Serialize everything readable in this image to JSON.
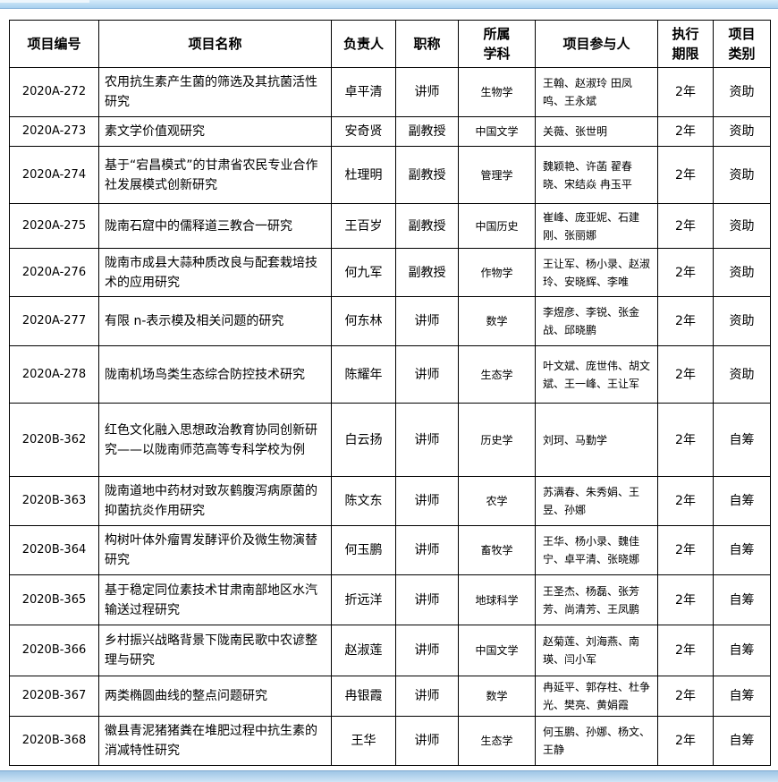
{
  "colors": {
    "top_bar": "#a9d0ef",
    "bottom_bar": "#9fc6e6"
  },
  "headers": [
    "项目编号",
    "项目名称",
    "负责人",
    "职称",
    "所属学科",
    "项目参与人",
    "执行期限",
    "项目类别"
  ],
  "rows": [
    {
      "id": "2020A-272",
      "name": "农用抗生素产生菌的筛选及其抗菌活性研究",
      "leader": "卓平清",
      "title": "讲师",
      "subject": "生物学",
      "participants": "王翰、赵淑玲 田凤鸣、王永斌",
      "period": "2年",
      "type": "资助"
    },
    {
      "id": "2020A-273",
      "name": "素文学价值观研究",
      "leader": "安奇贤",
      "title": "副教授",
      "subject": "中国文学",
      "participants": "关薇、张世明",
      "period": "2年",
      "type": "资助"
    },
    {
      "id": "2020A-274",
      "name": "基于“宕昌模式”的甘肃省农民专业合作社发展模式创新研究",
      "leader": "杜理明",
      "title": "副教授",
      "subject": "管理学",
      "participants": "魏颖艳、许菡 翟春晓、宋结焱 冉玉平",
      "period": "2年",
      "type": "资助"
    },
    {
      "id": "2020A-275",
      "name": "陇南石窟中的儒释道三教合一研究",
      "leader": "王百岁",
      "title": "副教授",
      "subject": "中国历史",
      "participants": "崔峰、庞亚妮、石建刚、张丽娜",
      "period": "2年",
      "type": "资助"
    },
    {
      "id": "2020A-276",
      "name": "陇南市成县大蒜种质改良与配套栽培技术的应用研究",
      "leader": "何九军",
      "title": "副教授",
      "subject": "作物学",
      "participants": "王让军、杨小录、赵淑玲、安晓辉、李唯",
      "period": "2年",
      "type": "资助"
    },
    {
      "id": "2020A-277",
      "name": "有限 n-表示模及相关问题的研究",
      "leader": "何东林",
      "title": "讲师",
      "subject": "数学",
      "participants": "李煜彦、李锐、张金战、邱晓鹏",
      "period": "2年",
      "type": "资助"
    },
    {
      "id": "2020A-278",
      "name": "陇南机场鸟类生态综合防控技术研究",
      "leader": "陈耀年",
      "title": "讲师",
      "subject": "生态学",
      "participants": "叶文斌、庞世伟、胡文斌、王一峰、王让军",
      "period": "2年",
      "type": "资助"
    },
    {
      "id": "2020B-362",
      "name": "红色文化融入思想政治教育协同创新研究——以陇南师范高等专科学校为例",
      "leader": "白云扬",
      "title": "讲师",
      "subject": "历史学",
      "participants": "刘珂、马勤学",
      "period": "2年",
      "type": "自筹"
    },
    {
      "id": "2020B-363",
      "name": "陇南道地中药材对致灰鹤腹泻病原菌的抑菌抗炎作用研究",
      "leader": "陈文东",
      "title": "讲师",
      "subject": "农学",
      "participants": "苏满春、朱秀娟、王昱、孙娜",
      "period": "2年",
      "type": "自筹"
    },
    {
      "id": "2020B-364",
      "name": "构树叶体外瘤胃发酵评价及微生物演替研究",
      "leader": "何玉鹏",
      "title": "讲师",
      "subject": "畜牧学",
      "participants": "王华、杨小录、魏佳宁、卓平清、张晓娜",
      "period": "2年",
      "type": "自筹"
    },
    {
      "id": "2020B-365",
      "name": "基于稳定同位素技术甘肃南部地区水汽输送过程研究",
      "leader": "折远洋",
      "title": "讲师",
      "subject": "地球科学",
      "participants": "王圣杰、杨磊、张芳芳、尚清芳、王凤鹏",
      "period": "2年",
      "type": "自筹"
    },
    {
      "id": "2020B-366",
      "name": "乡村振兴战略背景下陇南民歌中农谚整理与研究",
      "leader": "赵淑莲",
      "title": "讲师",
      "subject": "中国文学",
      "participants": "赵菊莲、刘海燕、南瑛、闫小军",
      "period": "2年",
      "type": "自筹"
    },
    {
      "id": "2020B-367",
      "name": "两类椭圆曲线的整点问题研究",
      "leader": "冉银霞",
      "title": "讲师",
      "subject": "数学",
      "participants": "冉延平、郭存柱、杜争光、樊亮、黄娟霞",
      "period": "2年",
      "type": "自筹"
    },
    {
      "id": "2020B-368",
      "name": "徽县青泥猪猪粪在堆肥过程中抗生素的消减特性研究",
      "leader": "王华",
      "title": "讲师",
      "subject": "生态学",
      "participants": "何玉鹏、孙娜、杨文、王静",
      "period": "2年",
      "type": "自筹"
    }
  ]
}
